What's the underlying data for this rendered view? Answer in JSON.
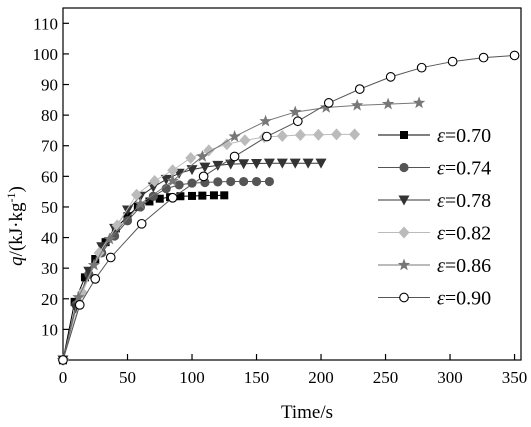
{
  "chart_data": {
    "type": "line",
    "title": "",
    "xlabel": "Time/s",
    "ylabel_prefix": "q",
    "ylabel_units": "/(kJ·kg",
    "ylabel_exp": "-1",
    "ylabel_close": ")",
    "xlim": [
      0,
      355
    ],
    "ylim": [
      0,
      115
    ],
    "xticks": [
      0,
      50,
      100,
      150,
      200,
      250,
      300,
      350
    ],
    "yticks": [
      10,
      20,
      30,
      40,
      50,
      60,
      70,
      80,
      90,
      100,
      110
    ],
    "legend_position": "right",
    "grid": false,
    "series": [
      {
        "name": "ε=0.70",
        "symbol": "ε",
        "value_text": "=0.70",
        "marker": "square",
        "color": "#000000",
        "line_color": "#000000",
        "x": [
          0,
          9,
          17,
          25,
          33,
          41,
          50,
          58,
          67,
          75,
          83,
          91,
          100,
          108,
          117,
          125
        ],
        "y": [
          0,
          19,
          27,
          33,
          38.5,
          43,
          47,
          50,
          51.8,
          52.7,
          53.2,
          53.5,
          53.6,
          53.7,
          53.8,
          53.8
        ]
      },
      {
        "name": "ε=0.74",
        "symbol": "ε",
        "value_text": "=0.74",
        "marker": "circle",
        "color": "#555555",
        "line_color": "#555555",
        "x": [
          0,
          10,
          20,
          30,
          40,
          50,
          60,
          70,
          80,
          90,
          100,
          110,
          120,
          130,
          140,
          150,
          160
        ],
        "y": [
          0,
          18,
          28,
          35,
          40.5,
          45.5,
          50,
          53.5,
          56,
          57.2,
          57.8,
          58,
          58.2,
          58.3,
          58.3,
          58.3,
          58.3
        ]
      },
      {
        "name": "ε=0.78",
        "symbol": "ε",
        "value_text": "=0.78",
        "marker": "triangle-down",
        "color": "#333333",
        "line_color": "#333333",
        "x": [
          0,
          10,
          20,
          30,
          40,
          50,
          60,
          70,
          80,
          90,
          100,
          110,
          120,
          130,
          140,
          150,
          160,
          170,
          180,
          190,
          200
        ],
        "y": [
          0,
          17,
          29,
          37,
          43,
          49,
          53.5,
          56.5,
          59,
          61,
          62.2,
          63,
          63.6,
          64,
          64.1,
          64.2,
          64.3,
          64.3,
          64.3,
          64.3,
          64.3
        ]
      },
      {
        "name": "ε=0.82",
        "symbol": "ε",
        "value_text": "=0.82",
        "marker": "diamond",
        "color": "#bbbbbb",
        "line_color": "#bbbbbb",
        "x": [
          0,
          15,
          28,
          42,
          57,
          71,
          85,
          99,
          113,
          127,
          141,
          156,
          170,
          184,
          198,
          212,
          226
        ],
        "y": [
          0,
          22,
          35,
          44,
          54,
          58.5,
          62,
          66,
          68.5,
          70.5,
          71.8,
          72.8,
          73.2,
          73.5,
          73.6,
          73.7,
          73.7
        ]
      },
      {
        "name": "ε=0.86",
        "symbol": "ε",
        "value_text": "=0.86",
        "marker": "star",
        "color": "#777777",
        "line_color": "#777777",
        "x": [
          0,
          12,
          24,
          36,
          60,
          85,
          108,
          133,
          157,
          180,
          204,
          228,
          252,
          276
        ],
        "y": [
          0,
          20.5,
          31,
          39.5,
          51,
          58.5,
          66.5,
          73,
          78,
          81,
          82.5,
          83.2,
          83.6,
          84
        ]
      },
      {
        "name": "ε=0.90",
        "symbol": "ε",
        "value_text": "=0.90",
        "marker": "open-circle",
        "color": "#000000",
        "line_color": "#555555",
        "x": [
          0,
          13,
          25,
          37,
          61,
          85,
          109,
          133,
          158,
          182,
          206,
          230,
          254,
          278,
          302,
          326,
          350
        ],
        "y": [
          0,
          18,
          26.5,
          33.5,
          44.5,
          53,
          60,
          66.5,
          73,
          78,
          84,
          88.5,
          92.5,
          95.5,
          97.5,
          98.8,
          99.5
        ]
      }
    ]
  }
}
